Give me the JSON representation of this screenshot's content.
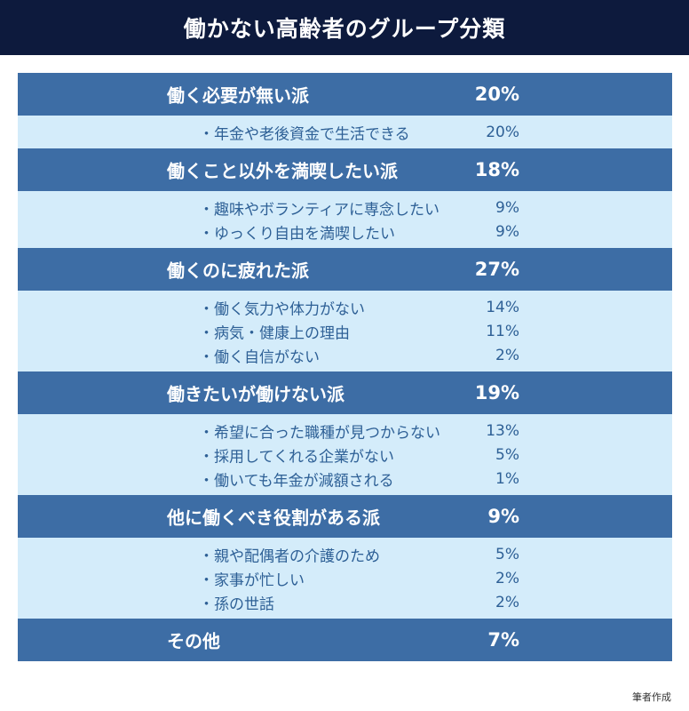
{
  "header": {
    "title": "働かない高齢者のグループ分類"
  },
  "chart_data": {
    "type": "table",
    "groups": [
      {
        "name": "働く必要が無い派",
        "value": "20%",
        "items": [
          {
            "label": "・年金や老後資金で生活できる",
            "value": "20%"
          }
        ]
      },
      {
        "name": "働くこと以外を満喫したい派",
        "value": "18%",
        "items": [
          {
            "label": "・趣味やボランティアに専念したい",
            "value": "9%"
          },
          {
            "label": "・ゆっくり自由を満喫したい",
            "value": "9%"
          }
        ]
      },
      {
        "name": "働くのに疲れた派",
        "value": "27%",
        "items": [
          {
            "label": "・働く気力や体力がない",
            "value": "14%"
          },
          {
            "label": "・病気・健康上の理由",
            "value": "11%"
          },
          {
            "label": "・働く自信がない",
            "value": "2%"
          }
        ]
      },
      {
        "name": "働きたいが働けない派",
        "value": "19%",
        "items": [
          {
            "label": "・希望に合った職種が見つからない",
            "value": "13%"
          },
          {
            "label": "・採用してくれる企業がない",
            "value": "5%"
          },
          {
            "label": "・働いても年金が減額される",
            "value": "1%"
          }
        ]
      },
      {
        "name": "他に働くべき役割がある派",
        "value": "9%",
        "items": [
          {
            "label": "・親や配偶者の介護のため",
            "value": "5%"
          },
          {
            "label": "・家事が忙しい",
            "value": "2%"
          },
          {
            "label": "・孫の世話",
            "value": "2%"
          }
        ]
      },
      {
        "name": "その他",
        "value": "7%",
        "items": []
      }
    ]
  },
  "footer": {
    "credit": "筆者作成"
  },
  "colors": {
    "header_bg": "#0d1a3d",
    "group_bg": "#3d6da5",
    "item_bg": "#d4ecfa",
    "item_text": "#2e6096"
  }
}
